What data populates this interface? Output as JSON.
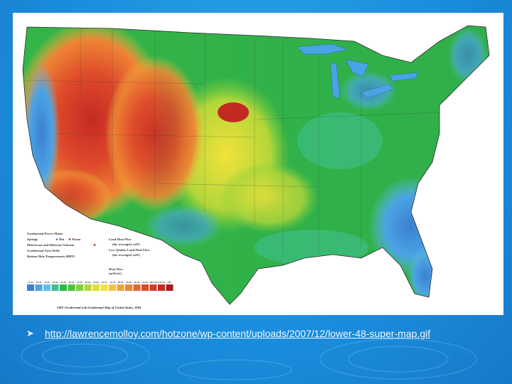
{
  "legend": {
    "power_plants": "Geothermal Power Plants",
    "springs": "Springs",
    "springs_hot": "Hot",
    "springs_warm": "Warm",
    "volcano": "Pleistocene and Holocene Volcano",
    "area_wells": "Geothermal Area Wells",
    "bht": "Bottom Hole Temperatures (BHT)",
    "land_heat_flow": "Land Heat Flow",
    "land_heat_flow_sub": "(lat. averaged, mW)",
    "low_quality": "Low Quality Land Heat Flow",
    "low_quality_sub": "(lat. averaged, mW)",
    "heat_flow": "Heat Flow",
    "heat_flow_unit": "(mW/m²)",
    "scale_labels": [
      "25-29",
      "30-34",
      "35-39",
      "40-44",
      "45-49",
      "50-54",
      "55-59",
      "60-64",
      "65-69",
      "70-74",
      "75-79",
      "80-84",
      "85-89",
      "90-94",
      "95-99",
      "100-109",
      "110-119",
      "120+"
    ],
    "scale_colors": [
      "#3d7fd1",
      "#4aa3e4",
      "#5ec0e6",
      "#3fbf8f",
      "#2fb84a",
      "#4fc43a",
      "#7fd03a",
      "#b3d63a",
      "#dbe13a",
      "#f2e23a",
      "#f6c23a",
      "#f2a23a",
      "#ee8434",
      "#e6642e",
      "#dd4a2a",
      "#d43a2a",
      "#c42a24",
      "#a81c1c"
    ],
    "map_title": "SMU Geothermal Lab Geothermal Map of United States, 2004"
  },
  "link": {
    "url": "http://lawrencemolloy.com/hotzone/wp-content/uploads/2007/12/lower-48-super-map.gif"
  },
  "colors": {
    "background": "#1b8ede",
    "cold": "#3d8fd6",
    "cool": "#3fbf8f",
    "mid": "#2fb84a",
    "warm": "#dbe13a",
    "hot": "#e6642e",
    "hottest": "#c42a24"
  }
}
